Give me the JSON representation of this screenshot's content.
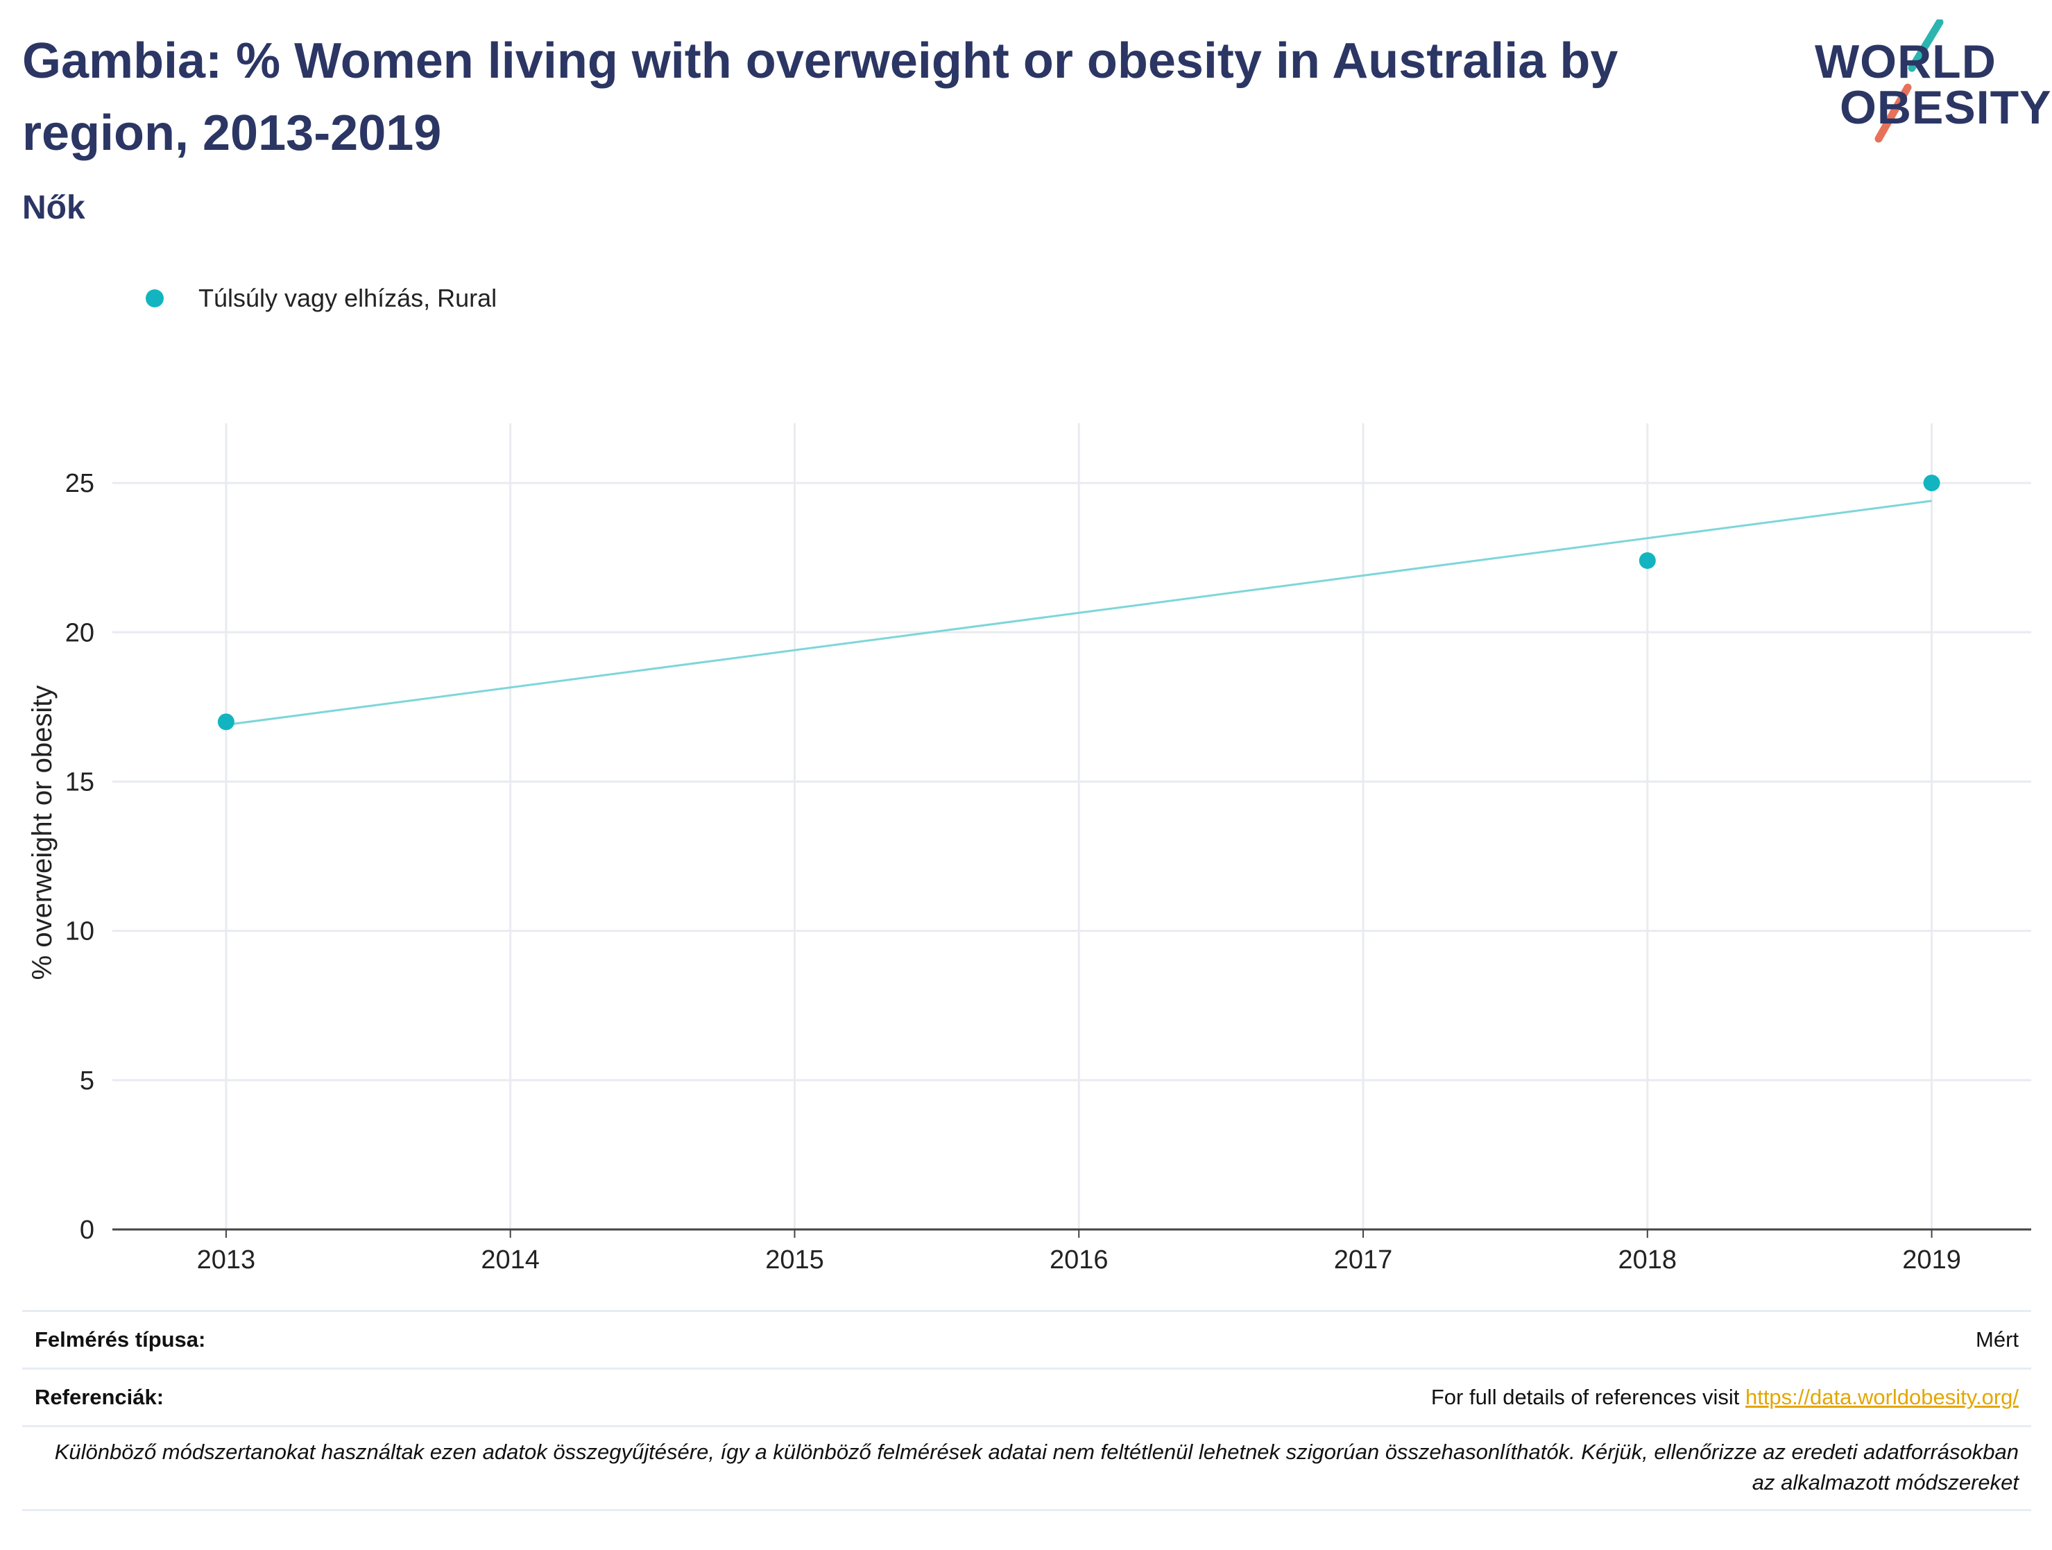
{
  "header": {
    "title": "Gambia: % Women living with overweight or obesity in Australia by region, 2013-2019",
    "subtitle": "Nők"
  },
  "logo": {
    "line1": "WORLD",
    "line2": "OBESITY",
    "accent_teal": "#2ab5b0",
    "accent_coral": "#e8715a"
  },
  "colors": {
    "series": "#12b5bf",
    "trend": "#7dd6d9",
    "grid": "#e9ebf0",
    "axis": "#444444",
    "title": "#2b3664"
  },
  "chart_data": {
    "type": "scatter",
    "title": "Gambia: % Women living with overweight or obesity in Australia by region, 2013-2019",
    "subtitle": "Nők",
    "ylabel": "% overweight or obesity",
    "xlabel": "",
    "x_ticks": [
      "2013",
      "2014",
      "2015",
      "2016",
      "2017",
      "2018",
      "2019"
    ],
    "y_ticks": [
      "0",
      "5",
      "10",
      "15",
      "20",
      "25"
    ],
    "xlim": [
      2012.6,
      2019.35
    ],
    "ylim": [
      0,
      27.0
    ],
    "grid": true,
    "legend_position": "top-left",
    "series": [
      {
        "name": "Túlsúly vagy elhízás, Rural",
        "x": [
          2013,
          2018,
          2019
        ],
        "y": [
          17.0,
          22.4,
          25.0
        ]
      }
    ],
    "trendline": {
      "x": [
        2013,
        2019
      ],
      "y": [
        16.9,
        24.4
      ]
    }
  },
  "footer": {
    "survey_label": "Felmérés típusa:",
    "survey_value": "Mért",
    "refs_label": "Referenciák:",
    "refs_text": "For full details of references visit ",
    "refs_link": "https://data.worldobesity.org/",
    "note": "Különböző módszertanokat használtak ezen adatok összegyűjtésére, így a különböző felmérések adatai nem feltétlenül lehetnek szigorúan összehasonlíthatók. Kérjük, ellenőrizze az eredeti adatforrásokban az alkalmazott módszereket"
  }
}
